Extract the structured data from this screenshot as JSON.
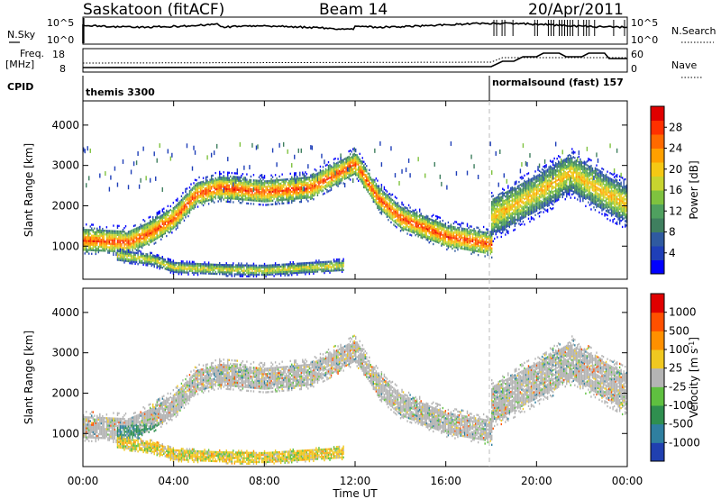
{
  "header": {
    "station": "Saskatoon (fitACF)",
    "beam": "Beam 14",
    "date": "20/Apr/2011"
  },
  "top_panels": {
    "nsky_label": "N.Sky",
    "nsky_top": "10^5",
    "nsky_bottom": "10^0",
    "nsearch_label": "N.Search",
    "nsearch_top": "10^5",
    "nsearch_bottom": "10^0",
    "freq_label_1": "Freq.",
    "freq_label_2": "[MHz]",
    "freq_top": "18",
    "freq_bottom": "8",
    "nave_label": "Nave",
    "nave_top": "60",
    "nave_bottom": "0",
    "cpid_label": "CPID",
    "cpid_segments": [
      {
        "name": "themis 3300",
        "start_hour": 0,
        "end_hour": 18
      },
      {
        "name": "normalsound (fast) 157",
        "start_hour": 18,
        "end_hour": 24
      }
    ]
  },
  "chart_data": [
    {
      "type": "heatmap",
      "title": "",
      "xlabel": "Time UT",
      "ylabel": "Slant Range [km]",
      "x_ticks": [
        "00:00",
        "04:00",
        "08:00",
        "12:00",
        "16:00",
        "20:00",
        "00:00"
      ],
      "x_range_hours": [
        0,
        24
      ],
      "y_ticks": [
        1000,
        2000,
        3000,
        4000
      ],
      "ylim": [
        180,
        4600
      ],
      "colorbar": {
        "label": "Power [dB]",
        "ticks": [
          "4",
          "8",
          "12",
          "16",
          "20",
          "24",
          "28"
        ],
        "range": [
          0,
          32
        ],
        "colors": [
          "#0000ff",
          "#1f3fb8",
          "#2f5aa0",
          "#3f7f5f",
          "#4fa05f",
          "#7fc23f",
          "#c8d42f",
          "#f5c814",
          "#ffa000",
          "#ff6a00",
          "#ff3000",
          "#e00000"
        ]
      },
      "echo_bands": [
        {
          "name": "main",
          "points": [
            [
              0,
              1150
            ],
            [
              2,
              1100
            ],
            [
              3,
              1350
            ],
            [
              4,
              1700
            ],
            [
              5,
              2300
            ],
            [
              6,
              2450
            ],
            [
              8,
              2350
            ],
            [
              10,
              2450
            ],
            [
              11.5,
              2900
            ],
            [
              12,
              3050
            ],
            [
              13,
              2200
            ],
            [
              14,
              1700
            ],
            [
              16,
              1250
            ],
            [
              18,
              1050
            ]
          ],
          "width": 550,
          "peak_db": 26
        },
        {
          "name": "near-range",
          "points": [
            [
              1.5,
              750
            ],
            [
              3,
              650
            ],
            [
              4,
              450
            ],
            [
              6,
              400
            ],
            [
              8,
              380
            ],
            [
              10,
              450
            ],
            [
              11.5,
              500
            ]
          ],
          "width": 250,
          "peak_db": 20
        },
        {
          "name": "late-far",
          "points": [
            [
              18,
              1700
            ],
            [
              20,
              2300
            ],
            [
              21.5,
              2800
            ],
            [
              23,
              2300
            ],
            [
              24,
              2000
            ]
          ],
          "width": 900,
          "peak_db": 22
        }
      ]
    },
    {
      "type": "heatmap",
      "title": "",
      "xlabel": "Time UT",
      "ylabel": "Slant Range [km]",
      "x_ticks": [
        "00:00",
        "04:00",
        "08:00",
        "12:00",
        "16:00",
        "20:00",
        "00:00"
      ],
      "x_range_hours": [
        0,
        24
      ],
      "y_ticks": [
        1000,
        2000,
        3000,
        4000
      ],
      "ylim": [
        180,
        4600
      ],
      "colorbar": {
        "label": "Velocity [m s^-1]",
        "ticks": [
          "1000",
          "500",
          "100",
          "25",
          "-25",
          "-100",
          "-500",
          "-1000"
        ],
        "colors": [
          "#2040b0",
          "#2f7fa0",
          "#2f8f4f",
          "#5fc040",
          "#b4b4b4",
          "#f0c820",
          "#ff9000",
          "#ff5000",
          "#e00000"
        ]
      },
      "velocity_regions": [
        {
          "name": "ground-scatter",
          "start_hour": 0,
          "end_hour": 24,
          "dominant": "gray"
        },
        {
          "name": "near-range-flow",
          "start_hour": 4,
          "end_hour": 11.5,
          "dominant": "orange"
        },
        {
          "name": "early-low-range",
          "start_hour": 1.5,
          "end_hour": 3.5,
          "dominant": "green"
        }
      ]
    }
  ]
}
